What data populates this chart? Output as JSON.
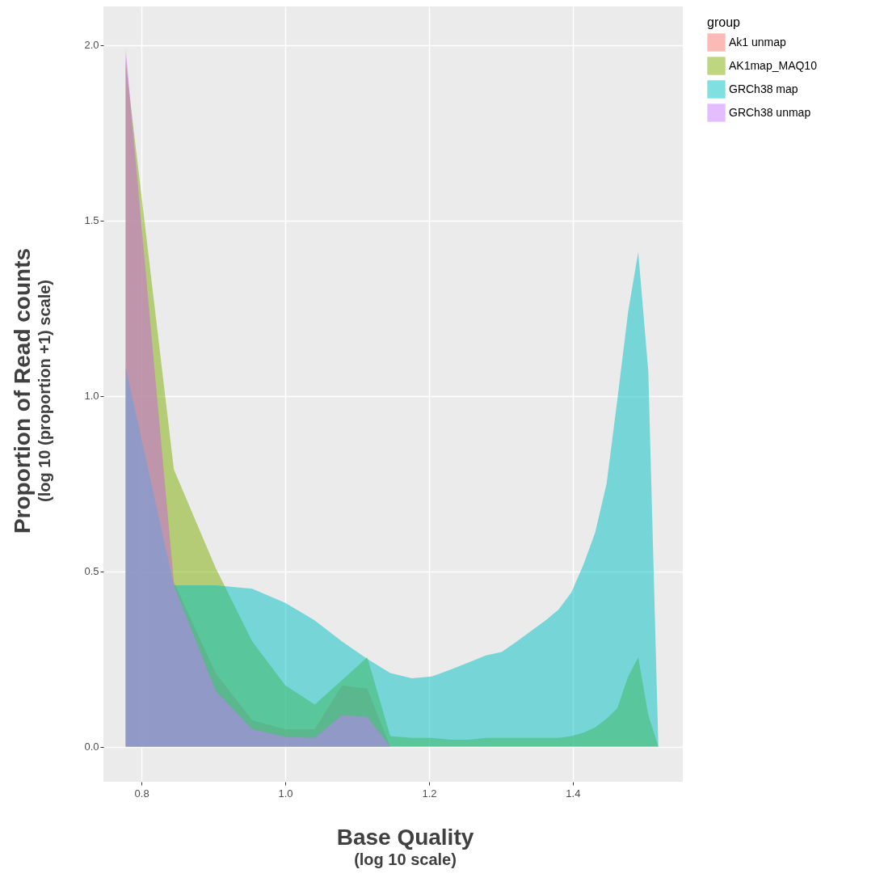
{
  "chart_data": {
    "type": "area",
    "xlabel": "Base Quality\n(log 10 scale)",
    "ylabel": "Proportion of Read counts\n(log 10 (proportion +1) scale)",
    "legend_title": "group",
    "legend": "right",
    "grid": true,
    "x": [
      0.778,
      0.845,
      0.903,
      0.954,
      1.0,
      1.041,
      1.079,
      1.114,
      1.146,
      1.176,
      1.204,
      1.23,
      1.255,
      1.279,
      1.301,
      1.322,
      1.342,
      1.362,
      1.38,
      1.398,
      1.415,
      1.431,
      1.447,
      1.462,
      1.477,
      1.491,
      1.505,
      1.519
    ],
    "xlim": [
      0.747,
      1.553
    ],
    "xticks": [
      0.8,
      {
        "value": 1,
        "label": "1.0"
      },
      1.2,
      1.4
    ],
    "ylim": [
      -0.1,
      2.11
    ],
    "yticks": [
      {
        "value": 0,
        "label": "0.0"
      },
      0.5,
      {
        "value": 1,
        "label": "1.0"
      },
      1.5,
      {
        "value": 2,
        "label": "2.0"
      }
    ],
    "series": [
      {
        "name": "Ak1 unmap",
        "color": "#f8766d",
        "values": [
          1.97,
          0.47,
          0.21,
          0.075,
          0.05,
          0.05,
          0.175,
          0.165,
          0,
          0,
          0,
          0,
          0,
          0,
          0,
          0,
          0,
          0,
          0,
          0,
          0,
          0,
          0,
          0,
          0,
          0,
          0,
          0
        ]
      },
      {
        "name": "AK1map_MAQ10",
        "color": "#7cae00",
        "values": [
          1.95,
          0.79,
          0.51,
          0.3,
          0.175,
          0.12,
          0.19,
          0.255,
          0.03,
          0.025,
          0.025,
          0.02,
          0.02,
          0.025,
          0.025,
          0.025,
          0.025,
          0.025,
          0.025,
          0.03,
          0.04,
          0.055,
          0.08,
          0.11,
          0.2,
          0.255,
          0.09,
          0
        ]
      },
      {
        "name": "GRCh38 map",
        "color": "#00bfc4",
        "values": [
          1.08,
          0.46,
          0.46,
          0.45,
          0.41,
          0.36,
          0.3,
          0.25,
          0.21,
          0.195,
          0.2,
          0.22,
          0.24,
          0.26,
          0.27,
          0.3,
          0.33,
          0.36,
          0.39,
          0.44,
          0.52,
          0.61,
          0.75,
          0.99,
          1.24,
          1.41,
          1.07,
          0
        ]
      },
      {
        "name": "GRCh38 unmap",
        "color": "#c77cff",
        "values": [
          1.99,
          0.46,
          0.16,
          0.05,
          0.028,
          0.025,
          0.09,
          0.085,
          0,
          0,
          0,
          0,
          0,
          0,
          0,
          0,
          0,
          0,
          0,
          0,
          0,
          0,
          0,
          0,
          0,
          0,
          0,
          0
        ]
      }
    ]
  }
}
